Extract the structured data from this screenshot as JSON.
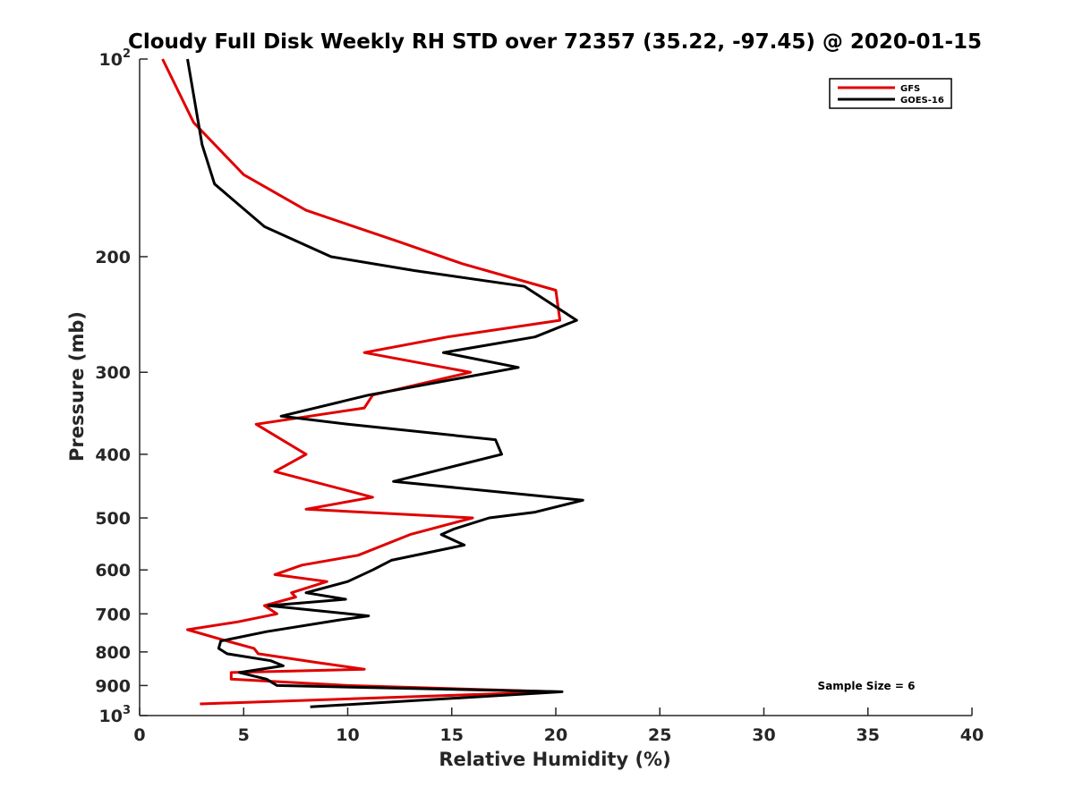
{
  "chart_data": {
    "type": "line",
    "title": "Cloudy Full Disk Weekly RH STD over 72357 (35.22, -97.45) @ 2020-01-15",
    "xlabel": "Relative Humidity (%)",
    "ylabel": "Pressure (mb)",
    "xlim": [
      0,
      40
    ],
    "ylim": [
      100,
      1000
    ],
    "y_scale": "log",
    "y_reversed": true,
    "x_ticks": [
      "0",
      "5",
      "10",
      "15",
      "20",
      "25",
      "30",
      "35",
      "40"
    ],
    "y_ticks": [
      {
        "value": 100,
        "base": "10",
        "exp": "2"
      },
      {
        "value": 200,
        "label": "200"
      },
      {
        "value": 300,
        "label": "300"
      },
      {
        "value": 400,
        "label": "400"
      },
      {
        "value": 500,
        "label": "500"
      },
      {
        "value": 600,
        "label": "600"
      },
      {
        "value": 700,
        "label": "700"
      },
      {
        "value": 800,
        "label": "800"
      },
      {
        "value": 900,
        "label": "900"
      },
      {
        "value": 1000,
        "base": "10",
        "exp": "3"
      }
    ],
    "grid": false,
    "legend_position": "top-right",
    "annotation": "Sample Size = 6",
    "series": [
      {
        "name": "GFS",
        "color": "#e00000",
        "points": [
          [
            1.1,
            100
          ],
          [
            2.6,
            125
          ],
          [
            5.0,
            150
          ],
          [
            8.0,
            170
          ],
          [
            12.5,
            190
          ],
          [
            15.5,
            205
          ],
          [
            20.0,
            225
          ],
          [
            20.2,
            250
          ],
          [
            14.8,
            265
          ],
          [
            10.8,
            280
          ],
          [
            15.9,
            300
          ],
          [
            11.2,
            325
          ],
          [
            10.8,
            340
          ],
          [
            5.6,
            360
          ],
          [
            8.0,
            400
          ],
          [
            6.5,
            425
          ],
          [
            11.2,
            465
          ],
          [
            8.0,
            485
          ],
          [
            16.0,
            500
          ],
          [
            13.0,
            530
          ],
          [
            10.5,
            570
          ],
          [
            7.8,
            590
          ],
          [
            6.5,
            610
          ],
          [
            9.0,
            625
          ],
          [
            7.3,
            650
          ],
          [
            7.5,
            660
          ],
          [
            6.0,
            680
          ],
          [
            6.6,
            700
          ],
          [
            4.7,
            720
          ],
          [
            2.3,
            740
          ],
          [
            4.2,
            770
          ],
          [
            5.5,
            790
          ],
          [
            5.7,
            805
          ],
          [
            8.5,
            830
          ],
          [
            10.8,
            850
          ],
          [
            4.4,
            860
          ],
          [
            4.4,
            880
          ],
          [
            10.0,
            900
          ],
          [
            20.0,
            920
          ],
          [
            2.9,
            960
          ]
        ]
      },
      {
        "name": "GOES-16",
        "color": "#000000",
        "points": [
          [
            2.3,
            100
          ],
          [
            3.0,
            135
          ],
          [
            3.6,
            155
          ],
          [
            6.0,
            180
          ],
          [
            9.2,
            200
          ],
          [
            13.2,
            210
          ],
          [
            18.5,
            222
          ],
          [
            21.0,
            250
          ],
          [
            19.0,
            265
          ],
          [
            14.6,
            280
          ],
          [
            18.2,
            295
          ],
          [
            11.0,
            325
          ],
          [
            6.8,
            350
          ],
          [
            10.0,
            360
          ],
          [
            17.1,
            380
          ],
          [
            17.4,
            400
          ],
          [
            12.2,
            440
          ],
          [
            21.3,
            470
          ],
          [
            19.0,
            490
          ],
          [
            16.8,
            500
          ],
          [
            15.1,
            520
          ],
          [
            14.5,
            530
          ],
          [
            15.6,
            550
          ],
          [
            12.1,
            580
          ],
          [
            11.2,
            600
          ],
          [
            10.0,
            625
          ],
          [
            8.0,
            650
          ],
          [
            9.9,
            665
          ],
          [
            6.2,
            680
          ],
          [
            11.0,
            705
          ],
          [
            9.6,
            715
          ],
          [
            6.1,
            745
          ],
          [
            3.9,
            770
          ],
          [
            3.8,
            790
          ],
          [
            4.2,
            805
          ],
          [
            6.3,
            825
          ],
          [
            6.9,
            840
          ],
          [
            4.8,
            860
          ],
          [
            6.1,
            880
          ],
          [
            6.6,
            900
          ],
          [
            20.3,
            920
          ],
          [
            8.2,
            970
          ]
        ]
      }
    ]
  }
}
